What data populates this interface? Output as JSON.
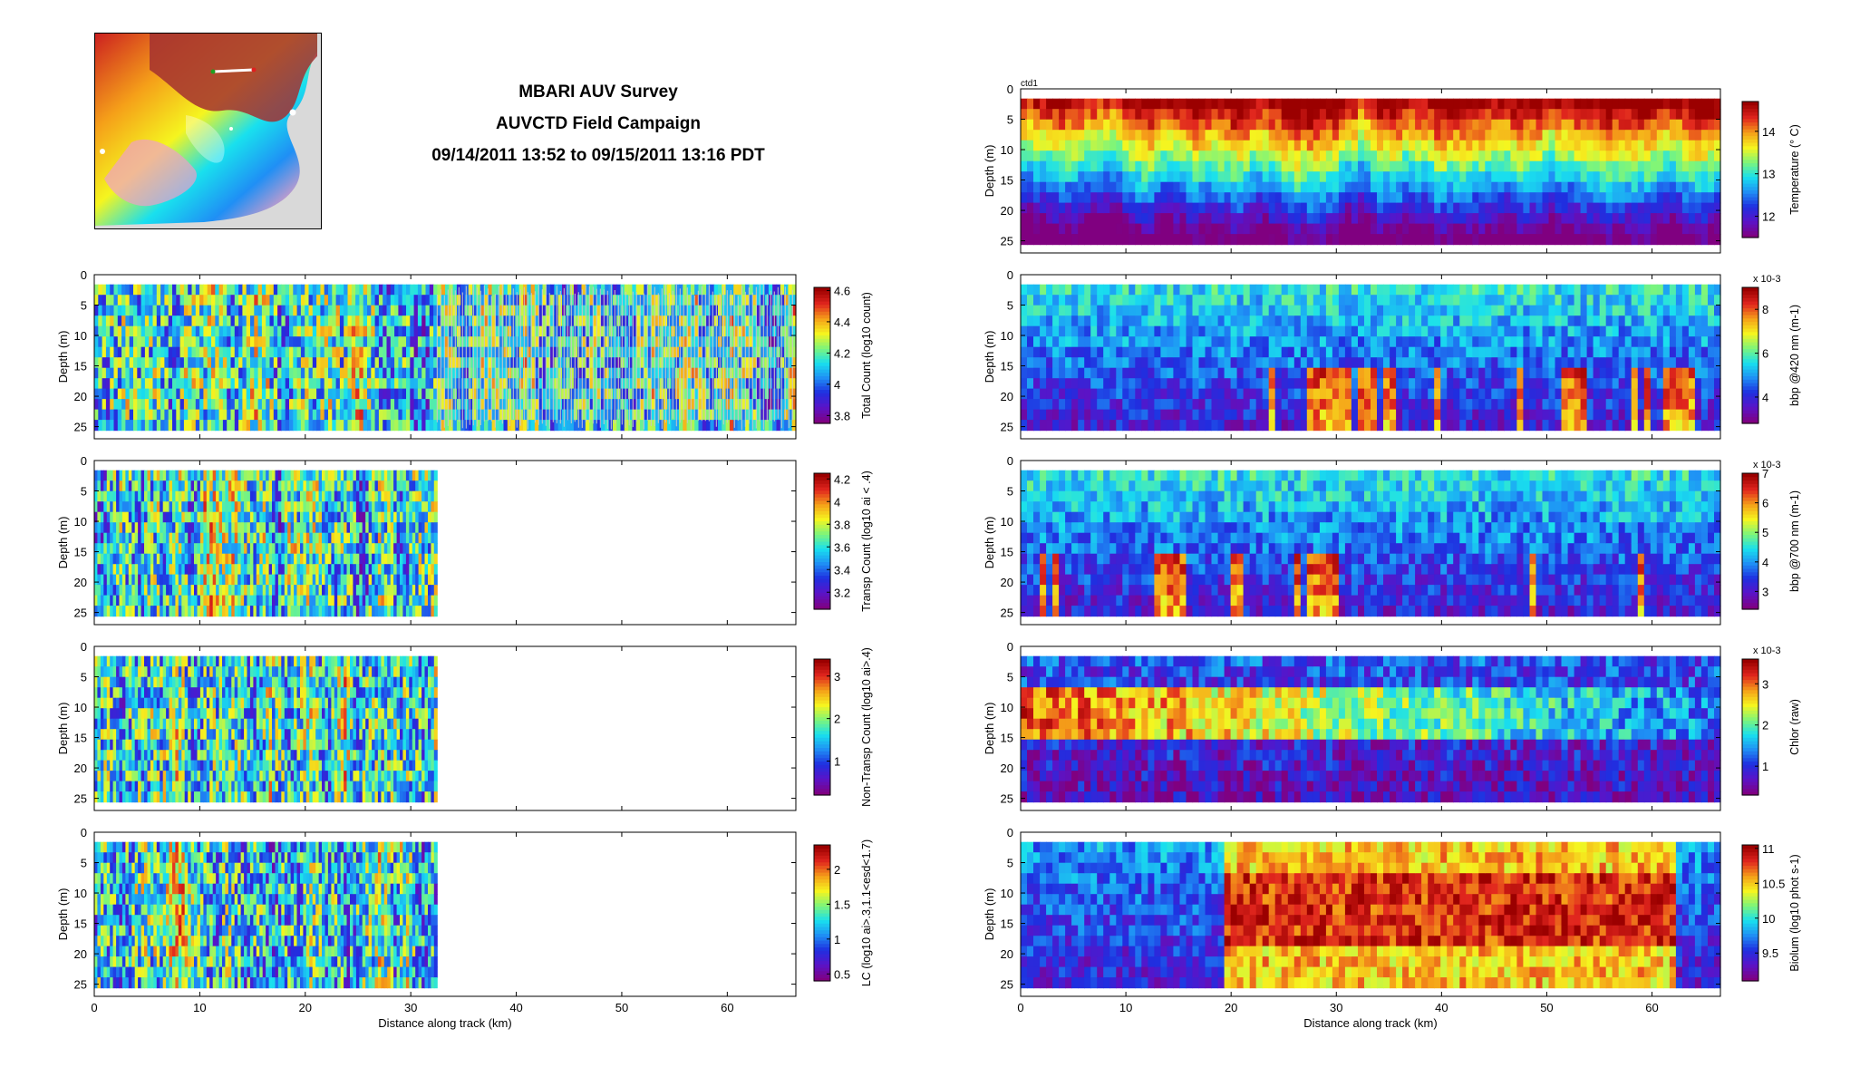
{
  "header": {
    "line1": "MBARI AUV Survey",
    "line2": "AUVCTD Field Campaign",
    "line3": "09/14/2011 13:52 to 09/15/2011 13:16 PDT"
  },
  "map": {
    "icon": "survey-location-map"
  },
  "common": {
    "ylabel": "Depth (m)",
    "xlabel": "Distance along track (km)",
    "depth_ticks": [
      0,
      5,
      10,
      15,
      20,
      25
    ],
    "distance_ticks": [
      0,
      10,
      20,
      30,
      40,
      50,
      60
    ],
    "depth_range": [
      0,
      27
    ],
    "distance_range": [
      0,
      66.5
    ]
  },
  "colors": {
    "jet_ramp": [
      "#800080",
      "#5a14c8",
      "#1f2fe0",
      "#1f8ff5",
      "#19e0ee",
      "#7df57a",
      "#f5f51f",
      "#f5a019",
      "#e1261e",
      "#9b0000"
    ],
    "no_data_gray": "#c8c8c8"
  },
  "chart_data": [
    {
      "type": "heatmap",
      "column": "left",
      "ylabel": "Depth (m)",
      "xlabel": "",
      "colorbar_label": "Total Count (log10 count)",
      "colorbar_ticks": [
        "3.8",
        "4",
        "4.2",
        "4.4",
        "4.6"
      ],
      "colorbar_range": [
        3.75,
        4.62
      ],
      "data_x_range": [
        0,
        66.5
      ],
      "sampled_x_range": [
        0,
        32.5
      ],
      "seed": 11,
      "variant": "total"
    },
    {
      "type": "heatmap",
      "column": "left",
      "ylabel": "Depth (m)",
      "xlabel": "",
      "colorbar_label": "Transp Count (log10 ai < .4)",
      "colorbar_ticks": [
        "3.2",
        "3.4",
        "3.6",
        "3.8",
        "4",
        "4.2"
      ],
      "colorbar_range": [
        3.05,
        4.25
      ],
      "data_x_range": [
        0,
        32.5
      ],
      "seed": 23,
      "variant": "blobs"
    },
    {
      "type": "heatmap",
      "column": "left",
      "ylabel": "Depth (m)",
      "xlabel": "",
      "colorbar_label": "Non-Transp Count (log10 ai>.4)",
      "colorbar_ticks": [
        "1",
        "2",
        "3"
      ],
      "colorbar_range": [
        0.2,
        3.4
      ],
      "data_x_range": [
        0,
        32.5
      ],
      "seed": 37,
      "variant": "blobs"
    },
    {
      "type": "heatmap",
      "column": "left",
      "ylabel": "Depth (m)",
      "xlabel": "Distance along track (km)",
      "colorbar_label": "LC (log10 ai>.3,1.1<esd<1.7)",
      "colorbar_ticks": [
        "0.5",
        "1",
        "1.5",
        "2"
      ],
      "colorbar_range": [
        0.4,
        2.35
      ],
      "data_x_range": [
        0,
        32.5
      ],
      "seed": 41,
      "variant": "blobs"
    },
    {
      "type": "heatmap",
      "column": "right",
      "ylabel": "Depth (m)",
      "xlabel": "",
      "label": "ctd1",
      "colorbar_label": "Temperature (° C)",
      "colorbar_ticks": [
        "12",
        "13",
        "14"
      ],
      "colorbar_range": [
        11.5,
        14.7
      ],
      "data_x_range": [
        0,
        66.5
      ],
      "seed": 53,
      "variant": "temperature"
    },
    {
      "type": "heatmap",
      "column": "right",
      "ylabel": "Depth (m)",
      "xlabel": "",
      "colorbar_label": "bbp @420 nm (m-1)",
      "colorbar_multiplier": "x 10-3",
      "colorbar_ticks": [
        "4",
        "6",
        "8"
      ],
      "colorbar_range": [
        2.8,
        9.0
      ],
      "data_x_range": [
        0,
        66.5
      ],
      "seed": 67,
      "variant": "backscatter"
    },
    {
      "type": "heatmap",
      "column": "right",
      "ylabel": "Depth (m)",
      "xlabel": "",
      "colorbar_label": "bbp @700 nm (m-1)",
      "colorbar_multiplier": "x 10-3",
      "colorbar_ticks": [
        "3",
        "4",
        "5",
        "6",
        "7"
      ],
      "colorbar_range": [
        2.4,
        7.0
      ],
      "data_x_range": [
        0,
        66.5
      ],
      "seed": 79,
      "variant": "backscatter700"
    },
    {
      "type": "heatmap",
      "column": "right",
      "ylabel": "Depth (m)",
      "xlabel": "",
      "colorbar_label": "Chlor (raw)",
      "colorbar_multiplier": "x 10-3",
      "colorbar_ticks": [
        "1",
        "2",
        "3"
      ],
      "colorbar_range": [
        0.3,
        3.6
      ],
      "data_x_range": [
        0,
        66.5
      ],
      "seed": 83,
      "variant": "chlor"
    },
    {
      "type": "heatmap",
      "column": "right",
      "ylabel": "Depth (m)",
      "xlabel": "Distance along track (km)",
      "colorbar_label": "Biolum (log10 phot s-1)",
      "colorbar_ticks": [
        "9.5",
        "10",
        "10.5",
        "11"
      ],
      "colorbar_range": [
        9.1,
        11.05
      ],
      "data_x_range": [
        0,
        66.5
      ],
      "seed": 97,
      "variant": "biolum"
    }
  ]
}
